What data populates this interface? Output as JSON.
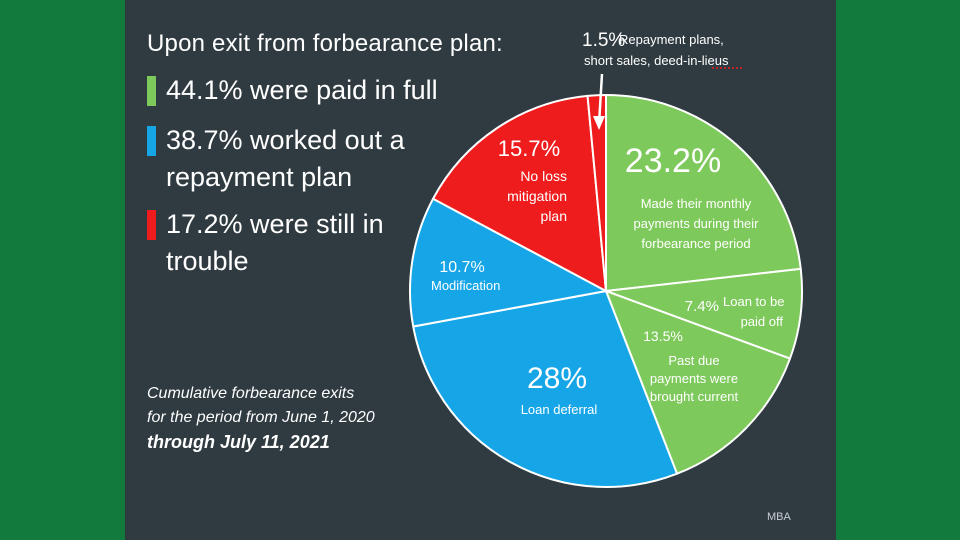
{
  "heading": "Upon exit from forbearance plan:",
  "legend": [
    {
      "text": "44.1% were paid in full",
      "color": "#7ec95b"
    },
    {
      "text": "38.7% worked out a repayment plan",
      "color": "#16a6e8"
    },
    {
      "text": "17.2% were still in trouble",
      "color": "#ee1c1c"
    }
  ],
  "note": {
    "line1": "Cumulative forbearance exits",
    "line2": "for the period from June 1, 2020",
    "line3": "through July 11, 2021"
  },
  "source": "MBA",
  "colors": {
    "green": "#7ec95b",
    "blue": "#16a6e8",
    "red": "#ee1c1c",
    "background": "#2f3b41",
    "frame": "#137a3d"
  },
  "chart_data": {
    "type": "pie",
    "start_angle_deg": 0,
    "direction": "clockwise",
    "slices": [
      {
        "value": 23.2,
        "pct": "23.2%",
        "label_lines": [
          "Made their monthly",
          "payments during their",
          "forbearance period"
        ],
        "color": "#7ec95b"
      },
      {
        "value": 7.4,
        "pct": "7.4%",
        "label_lines": [
          "Loan to be",
          "paid off"
        ],
        "color": "#7ec95b"
      },
      {
        "value": 13.5,
        "pct": "13.5%",
        "label_lines": [
          "Past due",
          "payments were",
          "brought current"
        ],
        "color": "#7ec95b"
      },
      {
        "value": 28,
        "pct": "28%",
        "label_lines": [
          "Loan deferral"
        ],
        "color": "#16a6e8"
      },
      {
        "value": 10.7,
        "pct": "10.7%",
        "label_lines": [
          "Modification"
        ],
        "color": "#16a6e8"
      },
      {
        "value": 15.7,
        "pct": "15.7%",
        "label_lines": [
          "No loss",
          "mitigation",
          "plan"
        ],
        "color": "#ee1c1c"
      },
      {
        "value": 1.5,
        "pct": "1.5%",
        "label_lines": [
          "Repayment plans,",
          "short sales, deed-in-lieus"
        ],
        "color": "#ee1c1c"
      }
    ]
  }
}
